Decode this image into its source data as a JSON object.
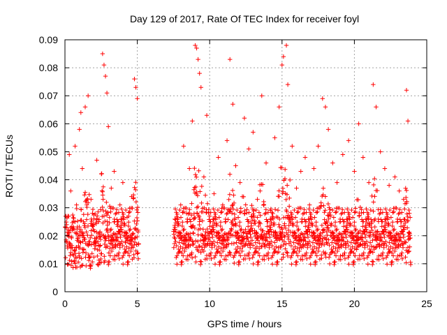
{
  "chart_data": {
    "type": "scatter",
    "title": "Day 129 of 2017, Rate Of TEC Index for receiver foyl",
    "xlabel": "GPS time / hours",
    "ylabel": "ROTI / TECUs",
    "xlim": [
      0,
      25
    ],
    "ylim": [
      0,
      0.09
    ],
    "xticks": [
      0,
      5,
      10,
      15,
      20,
      25
    ],
    "xtick_labels": [
      "0",
      "5",
      "10",
      "15",
      "20",
      "25"
    ],
    "yticks": [
      0,
      0.01,
      0.02,
      0.03,
      0.04,
      0.05,
      0.06,
      0.07,
      0.08,
      0.09
    ],
    "ytick_labels": [
      "0",
      "0.01",
      "0.02",
      "0.03",
      "0.04",
      "0.05",
      "0.06",
      "0.07",
      "0.08",
      "0.09"
    ],
    "grid": true,
    "marker": "+",
    "color": "#ff0000",
    "data_gap_hours": [
      5.1,
      7.5
    ],
    "series": [
      {
        "name": "ROTI",
        "points": [
          [
            0.1,
            0.018
          ],
          [
            0.2,
            0.027
          ],
          [
            0.3,
            0.049
          ],
          [
            0.4,
            0.036
          ],
          [
            0.5,
            0.022
          ],
          [
            0.6,
            0.013
          ],
          [
            0.7,
            0.052
          ],
          [
            0.8,
            0.031
          ],
          [
            0.9,
            0.019
          ],
          [
            1.0,
            0.058
          ],
          [
            1.1,
            0.064
          ],
          [
            1.2,
            0.044
          ],
          [
            1.3,
            0.015
          ],
          [
            1.4,
            0.066
          ],
          [
            1.6,
            0.07
          ],
          [
            1.8,
            0.033
          ],
          [
            2.0,
            0.026
          ],
          [
            2.2,
            0.047
          ],
          [
            2.4,
            0.021
          ],
          [
            2.6,
            0.085
          ],
          [
            2.7,
            0.081
          ],
          [
            2.8,
            0.077
          ],
          [
            2.9,
            0.071
          ],
          [
            3.0,
            0.059
          ],
          [
            3.2,
            0.037
          ],
          [
            3.4,
            0.043
          ],
          [
            3.6,
            0.024
          ],
          [
            3.8,
            0.031
          ],
          [
            4.0,
            0.039
          ],
          [
            4.2,
            0.018
          ],
          [
            4.4,
            0.027
          ],
          [
            4.6,
            0.034
          ],
          [
            4.8,
            0.076
          ],
          [
            4.9,
            0.073
          ],
          [
            5.0,
            0.069
          ],
          [
            5.05,
            0.022
          ],
          [
            7.6,
            0.019
          ],
          [
            7.8,
            0.025
          ],
          [
            8.0,
            0.031
          ],
          [
            8.2,
            0.052
          ],
          [
            8.4,
            0.028
          ],
          [
            8.6,
            0.044
          ],
          [
            8.8,
            0.061
          ],
          [
            9.0,
            0.088
          ],
          [
            9.1,
            0.087
          ],
          [
            9.2,
            0.083
          ],
          [
            9.3,
            0.078
          ],
          [
            9.4,
            0.073
          ],
          [
            9.6,
            0.041
          ],
          [
            9.8,
            0.063
          ],
          [
            10.0,
            0.027
          ],
          [
            10.3,
            0.035
          ],
          [
            10.6,
            0.048
          ],
          [
            10.9,
            0.031
          ],
          [
            11.2,
            0.054
          ],
          [
            11.4,
            0.083
          ],
          [
            11.6,
            0.067
          ],
          [
            11.8,
            0.045
          ],
          [
            12.1,
            0.039
          ],
          [
            12.4,
            0.062
          ],
          [
            12.7,
            0.051
          ],
          [
            13.0,
            0.057
          ],
          [
            13.3,
            0.033
          ],
          [
            13.6,
            0.07
          ],
          [
            13.9,
            0.046
          ],
          [
            14.2,
            0.029
          ],
          [
            14.5,
            0.055
          ],
          [
            14.8,
            0.066
          ],
          [
            15.0,
            0.081
          ],
          [
            15.1,
            0.084
          ],
          [
            15.3,
            0.088
          ],
          [
            15.4,
            0.074
          ],
          [
            15.7,
            0.052
          ],
          [
            16.0,
            0.037
          ],
          [
            16.3,
            0.043
          ],
          [
            16.6,
            0.048
          ],
          [
            16.9,
            0.031
          ],
          [
            17.2,
            0.044
          ],
          [
            17.5,
            0.052
          ],
          [
            17.8,
            0.069
          ],
          [
            18.0,
            0.066
          ],
          [
            18.2,
            0.058
          ],
          [
            18.5,
            0.046
          ],
          [
            18.8,
            0.039
          ],
          [
            19.2,
            0.049
          ],
          [
            19.6,
            0.054
          ],
          [
            20.0,
            0.043
          ],
          [
            20.3,
            0.06
          ],
          [
            20.6,
            0.048
          ],
          [
            21.0,
            0.039
          ],
          [
            21.3,
            0.074
          ],
          [
            21.5,
            0.066
          ],
          [
            21.8,
            0.05
          ],
          [
            22.1,
            0.044
          ],
          [
            22.4,
            0.038
          ],
          [
            22.8,
            0.041
          ],
          [
            23.1,
            0.036
          ],
          [
            23.4,
            0.033
          ],
          [
            23.6,
            0.072
          ],
          [
            23.7,
            0.061
          ],
          [
            23.8,
            0.028
          ]
        ]
      }
    ]
  }
}
